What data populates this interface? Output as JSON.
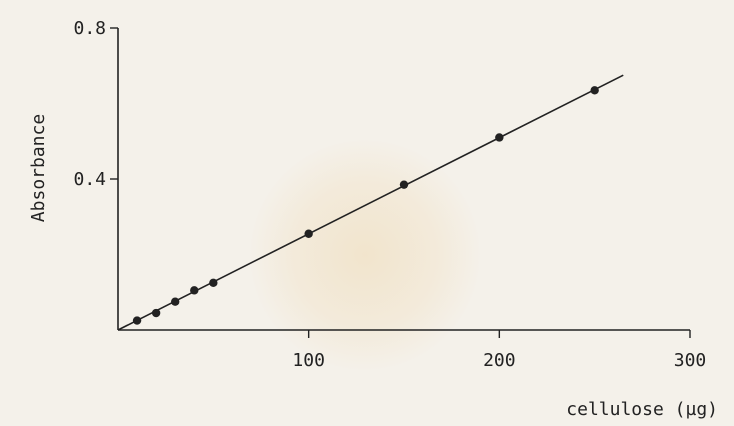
{
  "chart_data": {
    "type": "scatter",
    "title": "",
    "xlabel": "cellulose (µg)",
    "ylabel": "Absorbance",
    "xlim": [
      0,
      300
    ],
    "ylim": [
      0,
      0.8
    ],
    "x_ticks": [
      100,
      200,
      300
    ],
    "x_tick_labels": [
      "100",
      "200",
      "300"
    ],
    "y_ticks": [
      0.4,
      0.8
    ],
    "y_tick_labels": [
      "0.4",
      "0.8"
    ],
    "grid": false,
    "legend": "none",
    "series": [
      {
        "x": [
          10,
          20,
          30,
          40,
          50,
          100,
          150,
          200,
          250
        ],
        "y": [
          0.025,
          0.045,
          0.075,
          0.105,
          0.125,
          0.255,
          0.385,
          0.51,
          0.635
        ]
      }
    ],
    "fit_line": {
      "x": [
        0,
        265
      ],
      "y": [
        0.0,
        0.675
      ]
    },
    "colors": {
      "ink": "#222222",
      "background": "#f4f1ea"
    }
  }
}
